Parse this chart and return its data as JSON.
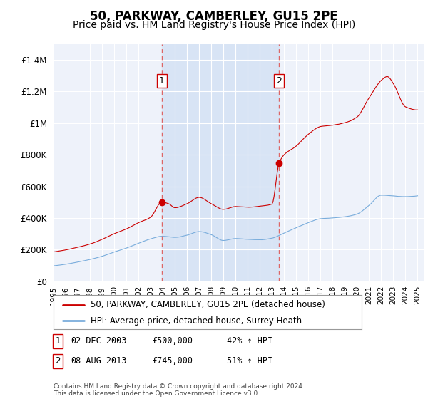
{
  "title": "50, PARKWAY, CAMBERLEY, GU15 2PE",
  "subtitle": "Price paid vs. HM Land Registry's House Price Index (HPI)",
  "title_fontsize": 12,
  "subtitle_fontsize": 10,
  "background_color": "#ffffff",
  "plot_bg_color": "#eef2fa",
  "shade_color": "#d8e4f5",
  "grid_color": "#ffffff",
  "legend_entry1": "50, PARKWAY, CAMBERLEY, GU15 2PE (detached house)",
  "legend_entry2": "HPI: Average price, detached house, Surrey Heath",
  "footnote": "Contains HM Land Registry data © Crown copyright and database right 2024.\nThis data is licensed under the Open Government Licence v3.0.",
  "sale1_label": "1",
  "sale1_date": "02-DEC-2003",
  "sale1_price": "£500,000",
  "sale1_hpi": "42% ↑ HPI",
  "sale1_x": 2003.92,
  "sale1_y": 500000,
  "sale2_label": "2",
  "sale2_date": "08-AUG-2013",
  "sale2_price": "£745,000",
  "sale2_hpi": "51% ↑ HPI",
  "sale2_x": 2013.58,
  "sale2_y": 745000,
  "line1_color": "#cc0000",
  "line2_color": "#7aaddc",
  "marker_color": "#cc0000",
  "vline_color": "#dd6666",
  "ylim": [
    0,
    1500000
  ],
  "xlim_start": 1995.0,
  "xlim_end": 2025.5,
  "yticks": [
    0,
    200000,
    400000,
    600000,
    800000,
    1000000,
    1200000,
    1400000
  ],
  "seed": 42,
  "hpi_base_points": [
    [
      1995.0,
      98000
    ],
    [
      1996.0,
      108000
    ],
    [
      1997.0,
      122000
    ],
    [
      1998.0,
      138000
    ],
    [
      1999.0,
      158000
    ],
    [
      2000.0,
      185000
    ],
    [
      2001.0,
      210000
    ],
    [
      2002.0,
      240000
    ],
    [
      2003.0,
      268000
    ],
    [
      2004.0,
      285000
    ],
    [
      2005.0,
      278000
    ],
    [
      2006.0,
      292000
    ],
    [
      2007.0,
      315000
    ],
    [
      2008.0,
      295000
    ],
    [
      2009.0,
      258000
    ],
    [
      2010.0,
      270000
    ],
    [
      2011.0,
      265000
    ],
    [
      2012.0,
      262000
    ],
    [
      2013.0,
      272000
    ],
    [
      2014.0,
      305000
    ],
    [
      2015.0,
      338000
    ],
    [
      2016.0,
      370000
    ],
    [
      2017.0,
      395000
    ],
    [
      2018.0,
      400000
    ],
    [
      2019.0,
      408000
    ],
    [
      2020.0,
      425000
    ],
    [
      2021.0,
      480000
    ],
    [
      2022.0,
      545000
    ],
    [
      2023.0,
      540000
    ],
    [
      2024.0,
      535000
    ],
    [
      2025.0,
      540000
    ]
  ],
  "prop_base_points": [
    [
      1995.0,
      185000
    ],
    [
      1996.0,
      198000
    ],
    [
      1997.0,
      215000
    ],
    [
      1998.0,
      235000
    ],
    [
      1999.0,
      265000
    ],
    [
      2000.0,
      300000
    ],
    [
      2001.0,
      330000
    ],
    [
      2002.0,
      370000
    ],
    [
      2003.0,
      405000
    ],
    [
      2003.92,
      500000
    ],
    [
      2004.5,
      490000
    ],
    [
      2005.0,
      465000
    ],
    [
      2006.0,
      490000
    ],
    [
      2007.0,
      530000
    ],
    [
      2008.0,
      490000
    ],
    [
      2009.0,
      455000
    ],
    [
      2010.0,
      472000
    ],
    [
      2011.0,
      468000
    ],
    [
      2012.0,
      475000
    ],
    [
      2013.0,
      488000
    ],
    [
      2013.58,
      745000
    ],
    [
      2014.0,
      800000
    ],
    [
      2015.0,
      855000
    ],
    [
      2016.0,
      930000
    ],
    [
      2017.0,
      980000
    ],
    [
      2018.0,
      990000
    ],
    [
      2019.0,
      1005000
    ],
    [
      2020.0,
      1040000
    ],
    [
      2021.0,
      1160000
    ],
    [
      2022.0,
      1270000
    ],
    [
      2022.5,
      1295000
    ],
    [
      2023.0,
      1250000
    ],
    [
      2024.0,
      1100000
    ],
    [
      2025.0,
      1080000
    ]
  ]
}
